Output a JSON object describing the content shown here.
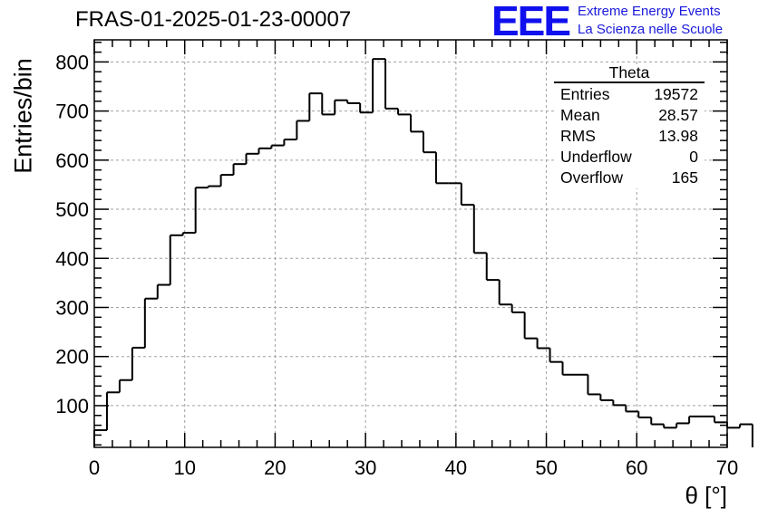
{
  "title": "FRAS-01-2025-01-23-00007",
  "logo": {
    "letters": "EEE",
    "line1": "Extreme Energy Events",
    "line2": "La Scienza nelle Scuole",
    "color": "#1010ee"
  },
  "stats": {
    "title": "Theta",
    "rows": [
      {
        "label": "Entries",
        "value": "19572"
      },
      {
        "label": "Mean",
        "value": "28.57"
      },
      {
        "label": "RMS",
        "value": "13.98"
      },
      {
        "label": "Underflow",
        "value": "0"
      },
      {
        "label": "Overflow",
        "value": "165"
      }
    ]
  },
  "chart_data": {
    "type": "bar",
    "style": "step-histogram",
    "title": "FRAS-01-2025-01-23-00007",
    "xlabel": "θ [°]",
    "ylabel": "Entries/bin",
    "xlim": [
      0,
      70
    ],
    "ylim": [
      15,
      845
    ],
    "grid": true,
    "bin_width": 1.4,
    "x_ticks": [
      0,
      10,
      20,
      30,
      40,
      50,
      60,
      70
    ],
    "y_ticks": [
      100,
      200,
      300,
      400,
      500,
      600,
      700,
      800
    ],
    "bin_edges_start": 0,
    "values": [
      50,
      127,
      152,
      218,
      318,
      346,
      447,
      452,
      544,
      547,
      570,
      592,
      613,
      624,
      630,
      642,
      680,
      736,
      693,
      722,
      716,
      697,
      806,
      705,
      693,
      658,
      616,
      553,
      553,
      509,
      411,
      356,
      306,
      290,
      237,
      217,
      189,
      163,
      163,
      123,
      111,
      101,
      88,
      76,
      62,
      55,
      64,
      78,
      78,
      66,
      55,
      62
    ],
    "line_color": "#000000"
  }
}
